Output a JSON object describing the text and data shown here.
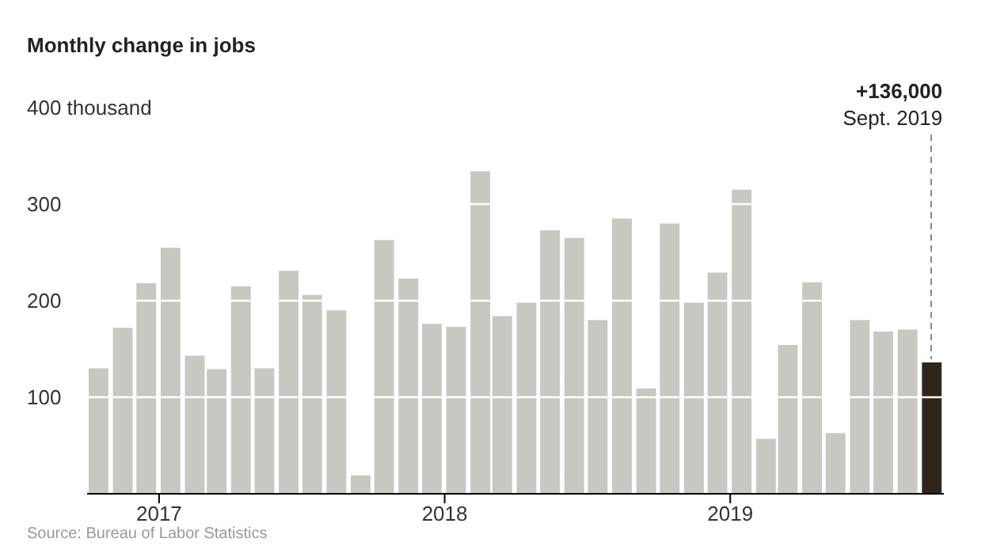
{
  "chart_data": {
    "type": "bar",
    "title": "Monthly change in jobs",
    "x": [
      "2016-10-15",
      "2016-11-15",
      "2016-12-15",
      "2017-01-15",
      "2017-02-15",
      "2017-03-15",
      "2017-04-15",
      "2017-05-15",
      "2017-06-15",
      "2017-07-15",
      "2017-08-15",
      "2017-09-15",
      "2017-10-15",
      "2017-11-15",
      "2017-12-15",
      "2018-01-15",
      "2018-02-15",
      "2018-03-15",
      "2018-04-15",
      "2018-05-15",
      "2018-06-15",
      "2018-07-15",
      "2018-08-15",
      "2018-09-15",
      "2018-10-15",
      "2018-11-15",
      "2018-12-15",
      "2019-01-15",
      "2019-02-15",
      "2019-03-15",
      "2019-04-15",
      "2019-05-15",
      "2019-06-15",
      "2019-07-15",
      "2019-08-15",
      "2019-09-15"
    ],
    "values": [
      130,
      172,
      218,
      255,
      143,
      129,
      215,
      130,
      231,
      206,
      190,
      19,
      263,
      223,
      176,
      173,
      334,
      184,
      198,
      273,
      265,
      180,
      285,
      109,
      280,
      198,
      229,
      315,
      57,
      154,
      219,
      63,
      180,
      168,
      170,
      136
    ],
    "colors": [
      "#c8c7c2",
      "#c8c7c2",
      "#c8c7c2",
      "#c8c7c2",
      "#c8c7c2",
      "#c8c7c2",
      "#c8c7c2",
      "#c8c7c2",
      "#c8c7c2",
      "#c8c7c2",
      "#c8c7c2",
      "#c8c7c2",
      "#c8c7c2",
      "#c8c7c2",
      "#c8c7c2",
      "#c8c7c2",
      "#c8c7c2",
      "#c8c7c2",
      "#c8c7c2",
      "#c8c7c2",
      "#c8c7c2",
      "#c8c7c2",
      "#c8c7c2",
      "#c8c7c2",
      "#c8c7c2",
      "#c8c7c2",
      "#c8c7c2",
      "#c8c7c2",
      "#c8c7c2",
      "#c8c7c2",
      "#c8c7c2",
      "#c8c7c2",
      "#c8c7c2",
      "#c8c7c2",
      "#c8c7c2",
      "#2e261c"
    ],
    "xlim": [
      "2016-10",
      "2019-10"
    ],
    "xticks": [
      "2017",
      "2018",
      "2019"
    ],
    "ylim": [
      0,
      400
    ],
    "yticks": [
      100,
      200,
      300,
      {
        "value": 400,
        "label": "400 thousand"
      }
    ],
    "grid": "y",
    "annotations": [
      "+136,000",
      {
        "text": "Sept. 2019",
        "x": "2019-09-15",
        "y": 136
      },
      "Source: Bureau of Labor Statistics"
    ]
  }
}
